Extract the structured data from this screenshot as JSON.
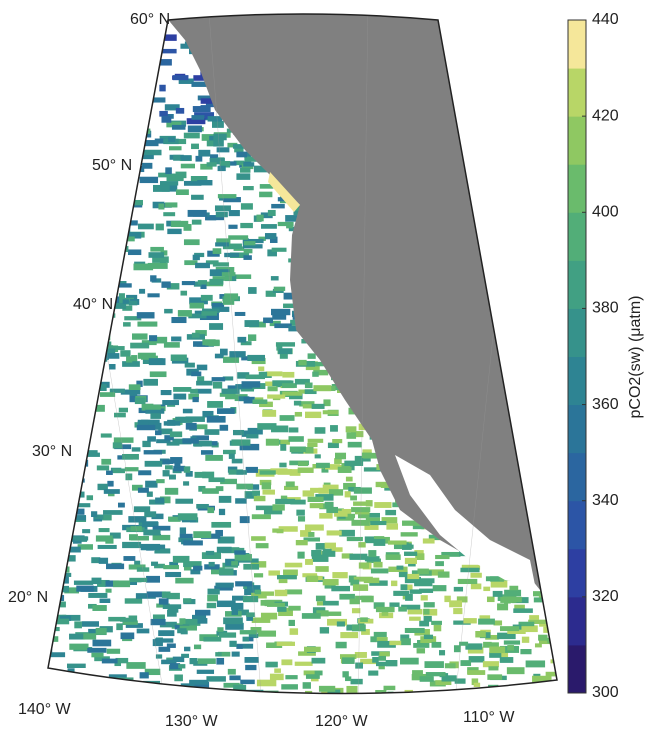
{
  "map": {
    "lat_labels": [
      "60° N",
      "50° N",
      "40° N",
      "30° N",
      "20° N"
    ],
    "lon_labels": [
      "140° W",
      "130° W",
      "120° W",
      "110° W"
    ]
  },
  "colorbar": {
    "label": "pCO2(sw) (μatm)",
    "range": [
      300,
      440
    ],
    "ticks": [
      300,
      320,
      340,
      360,
      380,
      400,
      420,
      440
    ],
    "colors": [
      "#2a1a6b",
      "#2c2b8e",
      "#2d3fa2",
      "#2c55a6",
      "#2b66a0",
      "#2b7599",
      "#2e8493",
      "#36928b",
      "#41a083",
      "#52ae78",
      "#6abb6c",
      "#8fc862",
      "#b8d667",
      "#f5e79a"
    ]
  }
}
